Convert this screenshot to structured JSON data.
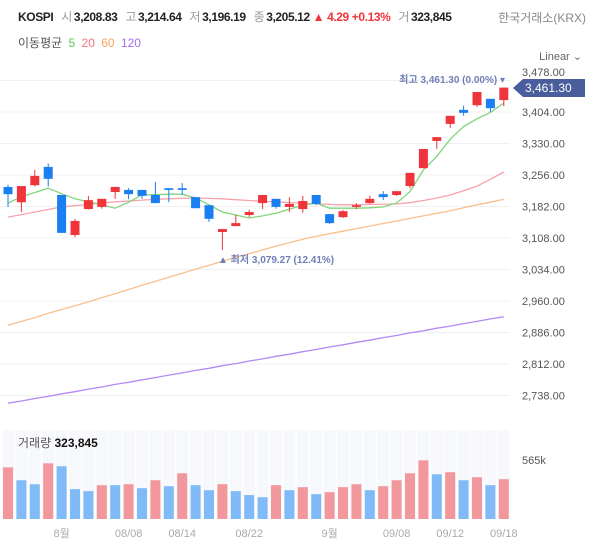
{
  "header": {
    "symbol": "KOSPI",
    "open_label": "시",
    "open": "3,208.83",
    "high_label": "고",
    "high": "3,214.64",
    "low_label": "저",
    "low": "3,196.19",
    "close_label": "종",
    "close": "3,205.12",
    "change": "▲ 4.29 +0.13%",
    "volume_label": "거",
    "volume": "323,845",
    "source": "한국거래소(KRX)"
  },
  "ma_legend": {
    "label": "이동평균",
    "items": [
      {
        "label": "5",
        "color": "#5cc85a"
      },
      {
        "label": "20",
        "color": "#f2727e"
      },
      {
        "label": "60",
        "color": "#f7a45c"
      },
      {
        "label": "120",
        "color": "#a46ef2"
      }
    ]
  },
  "scale_selector": "Linear ⌄",
  "price_tag": "3,461.30",
  "annotations": {
    "high": "최고 3,461.30 (0.00%) ▾",
    "low": "▲ 최저 3,079.27 (12.41%)"
  },
  "volume_panel": {
    "label": "거래량",
    "value": "323,845",
    "axis_label": "565k"
  },
  "colors": {
    "up": "#f0343c",
    "down": "#1a7ff0",
    "vol_up": "#f2979b",
    "vol_down": "#80bbf7",
    "ma5": "#7fd67a",
    "ma20": "#f7a3aa",
    "ma60": "#f9bf8c",
    "ma120": "#b488f5",
    "price_tag": "#4a5d9c"
  },
  "chart_data": {
    "type": "candlestick",
    "y_ticks": [
      "3,478.00",
      "3,404.00",
      "3,330.00",
      "3,256.00",
      "3,182.00",
      "3,108.00",
      "3,034.00",
      "2,960.00",
      "2,886.00",
      "2,812.00",
      "2,738.00"
    ],
    "y_tick_values": [
      3478,
      3404,
      3330,
      3256,
      3182,
      3108,
      3034,
      2960,
      2886,
      2812,
      2738
    ],
    "x_ticks": [
      {
        "label": "8월",
        "index": 4
      },
      {
        "label": "08/08",
        "index": 9
      },
      {
        "label": "08/14",
        "index": 13
      },
      {
        "label": "08/22",
        "index": 18
      },
      {
        "label": "9월",
        "index": 24
      },
      {
        "label": "09/08",
        "index": 29
      },
      {
        "label": "09/12",
        "index": 33
      },
      {
        "label": "09/18",
        "index": 37
      }
    ],
    "ohlc": [
      [
        3228,
        3233,
        3181,
        3211
      ],
      [
        3192,
        3230,
        3169,
        3230
      ],
      [
        3232,
        3268,
        3229,
        3254
      ],
      [
        3275,
        3283,
        3229,
        3247
      ],
      [
        3209,
        3209,
        3120,
        3120
      ],
      [
        3115,
        3153,
        3110,
        3148
      ],
      [
        3176,
        3207,
        3175,
        3197
      ],
      [
        3181,
        3200,
        3177,
        3200
      ],
      [
        3216,
        3228,
        3200,
        3228
      ],
      [
        3221,
        3225,
        3199,
        3211
      ],
      [
        3221,
        3221,
        3200,
        3207
      ],
      [
        3209,
        3240,
        3190,
        3190
      ],
      [
        3225,
        3225,
        3192,
        3221
      ],
      [
        3225,
        3237,
        3209,
        3221
      ],
      [
        3204,
        3204,
        3178,
        3178
      ],
      [
        3185,
        3185,
        3146,
        3153
      ],
      [
        3122,
        3129,
        3079.27,
        3129
      ],
      [
        3136,
        3162,
        3136,
        3143
      ],
      [
        3162,
        3174,
        3157,
        3169
      ],
      [
        3190,
        3209,
        3176,
        3209
      ],
      [
        3200,
        3200,
        3177,
        3181
      ],
      [
        3181,
        3204,
        3169,
        3188
      ],
      [
        3176,
        3207,
        3167,
        3195
      ],
      [
        3209,
        3209,
        3185,
        3188
      ],
      [
        3164,
        3164,
        3141,
        3143
      ],
      [
        3157,
        3174,
        3155,
        3171
      ],
      [
        3181,
        3190,
        3176,
        3185
      ],
      [
        3190,
        3207,
        3188,
        3200
      ],
      [
        3211,
        3218,
        3197,
        3204
      ],
      [
        3209,
        3218,
        3207,
        3218
      ],
      [
        3230,
        3261,
        3225,
        3261
      ],
      [
        3272,
        3317,
        3272,
        3317
      ],
      [
        3336,
        3345,
        3317,
        3345
      ],
      [
        3376,
        3395,
        3367,
        3395
      ],
      [
        3409,
        3419,
        3395,
        3402
      ],
      [
        3420,
        3451,
        3416,
        3451
      ],
      [
        3435,
        3435,
        3404,
        3413
      ],
      [
        3432,
        3461.3,
        3418,
        3461.3
      ]
    ],
    "ma5": [
      3190,
      3205,
      3215,
      3225,
      3212,
      3200,
      3193,
      3186,
      3178,
      3192,
      3209,
      3210,
      3211,
      3211,
      3202,
      3186,
      3169,
      3162,
      3155,
      3160,
      3166,
      3176,
      3185,
      3190,
      3178,
      3178,
      3178,
      3179,
      3181,
      3190,
      3217,
      3268,
      3300,
      3340,
      3370,
      3388,
      3403,
      3425
    ],
    "ma20": [
      3157,
      3163,
      3169,
      3175,
      3181,
      3184,
      3187,
      3190,
      3193,
      3195,
      3197,
      3199,
      3200,
      3201,
      3202,
      3201,
      3200,
      3198,
      3196,
      3194,
      3193,
      3191,
      3190,
      3188,
      3187,
      3186,
      3186,
      3187,
      3187,
      3188,
      3191,
      3196,
      3202,
      3209,
      3219,
      3230,
      3246,
      3263
    ],
    "ma60": [
      2903,
      2912,
      2921,
      2931,
      2940,
      2949,
      2958,
      2968,
      2977,
      2987,
      2997,
      3006,
      3016,
      3025,
      3035,
      3044,
      3053,
      3063,
      3071,
      3080,
      3089,
      3097,
      3105,
      3112,
      3118,
      3124,
      3130,
      3136,
      3142,
      3148,
      3154,
      3160,
      3166,
      3172,
      3179,
      3186,
      3192,
      3199
    ],
    "ma120": [
      2720,
      2725,
      2731,
      2736,
      2742,
      2747,
      2753,
      2758,
      2764,
      2769,
      2775,
      2780,
      2786,
      2791,
      2797,
      2802,
      2808,
      2813,
      2819,
      2824,
      2830,
      2835,
      2841,
      2846,
      2852,
      2857,
      2863,
      2868,
      2874,
      2879,
      2885,
      2890,
      2896,
      2901,
      2907,
      2912,
      2918,
      2923
    ],
    "volume_k": [
      495,
      371,
      333,
      533,
      505,
      286,
      267,
      324,
      324,
      333,
      295,
      371,
      314,
      438,
      324,
      276,
      333,
      267,
      229,
      209,
      324,
      276,
      305,
      238,
      257,
      305,
      333,
      276,
      314,
      371,
      438,
      562,
      428,
      448,
      371,
      400,
      324,
      381
    ],
    "volume_up": [
      1,
      0,
      0,
      1,
      0,
      0,
      0,
      1,
      0,
      1,
      0,
      1,
      0,
      1,
      0,
      0,
      1,
      0,
      0,
      0,
      1,
      0,
      1,
      0,
      1,
      1,
      1,
      0,
      1,
      1,
      1,
      1,
      0,
      1,
      0,
      1,
      0,
      1
    ],
    "volume_axis_max_k": 565
  }
}
